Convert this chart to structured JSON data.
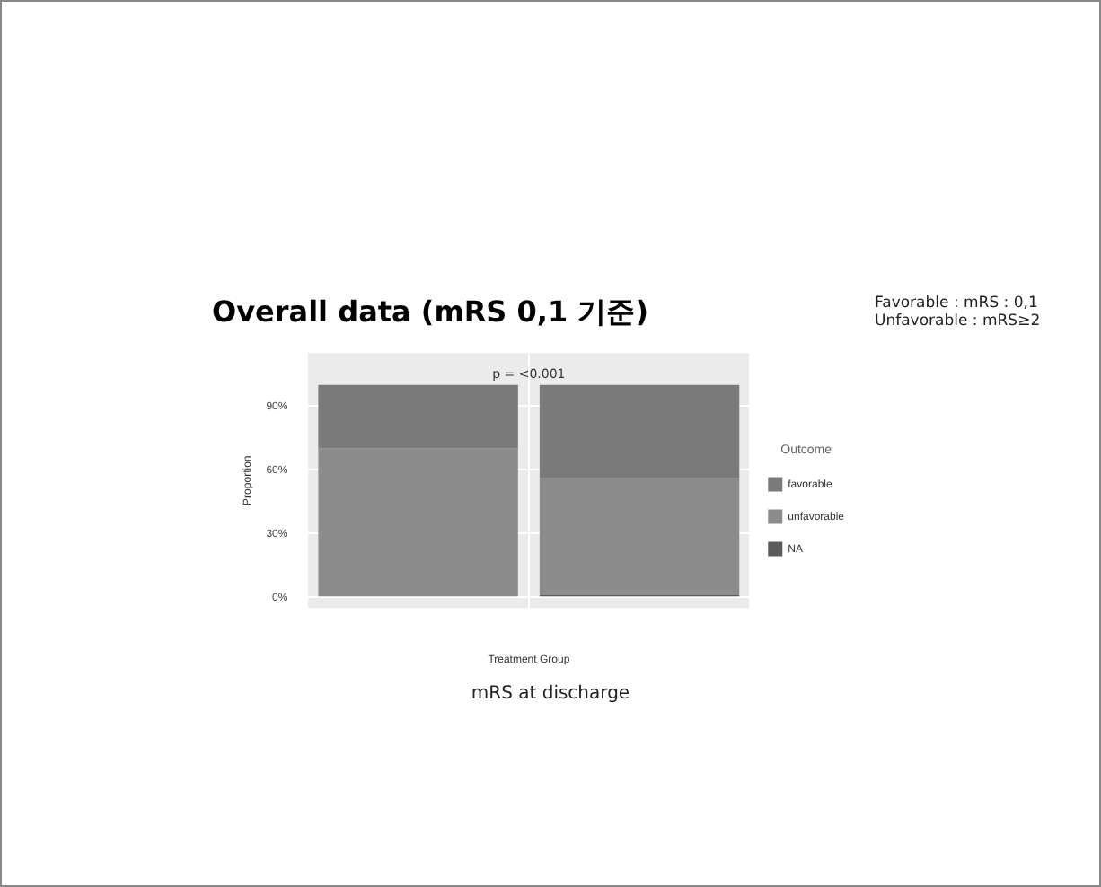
{
  "chart_data": {
    "type": "bar",
    "title": "Overall data (mRS 0,1 기준)",
    "xlabel": "Treatment Group",
    "ylabel": "Proportion",
    "legend_title": "Outcome",
    "categories": [
      null,
      null
    ],
    "stacked": true,
    "series": [
      {
        "name": "NA",
        "color": "#5a5a5a",
        "values": [
          null,
          1
        ]
      },
      {
        "name": "unfavorable",
        "color": "#8c8c8c",
        "values": [
          70,
          55
        ]
      },
      {
        "name": "favorable",
        "color": "#7a7a7a",
        "values": [
          30,
          44
        ]
      }
    ],
    "ylim": [
      -5,
      115
    ],
    "yticks": [
      {
        "value": 0,
        "label": "0%"
      },
      {
        "value": 30,
        "label": "30%"
      },
      {
        "value": 60,
        "label": "60%"
      },
      {
        "value": 90,
        "label": "90%"
      }
    ],
    "grid": true,
    "legend": "right",
    "annotations": [
      "p = <0.001",
      "Favorable : mRS : 0,1",
      "Unfavorable : mRS≥2",
      "mRS at discharge"
    ]
  }
}
